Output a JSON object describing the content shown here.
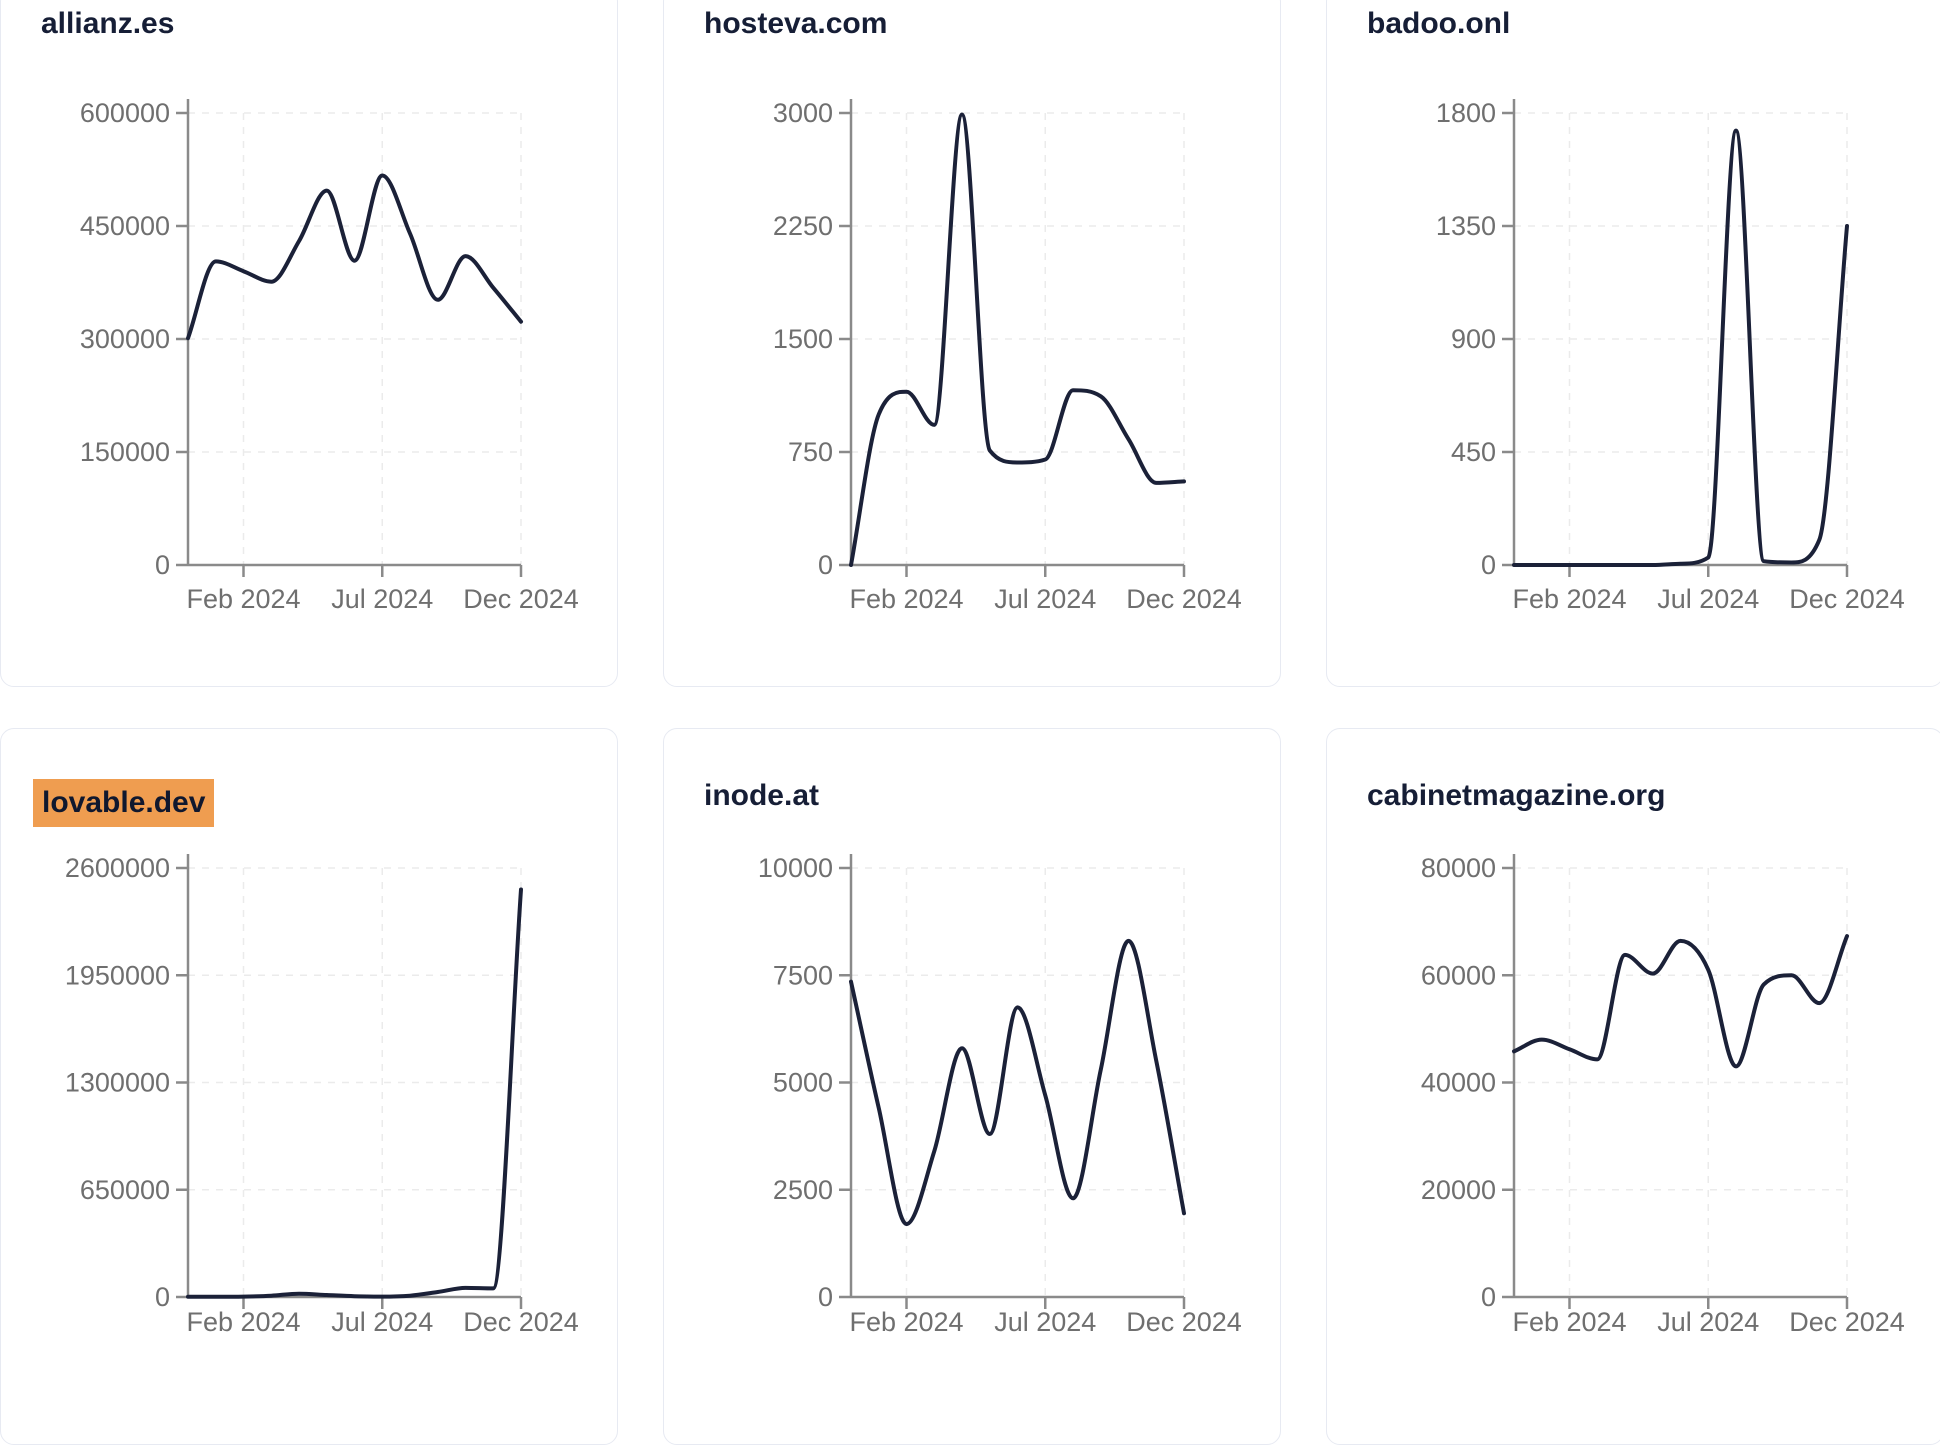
{
  "page": {
    "background": "#ffffff",
    "description": "Grid of organic-traffic trend line charts for six domains, Dec 2023 - Dec 2024"
  },
  "colors": {
    "line": "#1b2138",
    "title_text": "#161e36",
    "tick_text": "#6f6f6f",
    "axis": "#8a8a8a",
    "grid": "#ebebeb",
    "card_border": "#e7eaf2",
    "find_highlight": "#ef9d50"
  },
  "x_axis": {
    "months": [
      "Dec 2023",
      "Jan 2024",
      "Feb 2024",
      "Mar 2024",
      "Apr 2024",
      "May 2024",
      "Jun 2024",
      "Jul 2024",
      "Aug 2024",
      "Sep 2024",
      "Oct 2024",
      "Nov 2024",
      "Dec 2024"
    ],
    "ticks": [
      {
        "label": "Feb 2024",
        "month_index": 2
      },
      {
        "label": "Jul 2024",
        "month_index": 7
      },
      {
        "label": "Dec 2024",
        "month_index": 12
      }
    ]
  },
  "chart_data": [
    {
      "type": "line",
      "title": "allianz.es",
      "highlighted": false,
      "ylim": [
        0,
        600000
      ],
      "y_ticks": [
        0,
        150000,
        300000,
        450000,
        600000
      ],
      "x": [
        "Dec 2023",
        "Jan 2024",
        "Feb 2024",
        "Mar 2024",
        "Apr 2024",
        "May 2024",
        "Jun 2024",
        "Jul 2024",
        "Aug 2024",
        "Sep 2024",
        "Oct 2024",
        "Nov 2024",
        "Dec 2024"
      ],
      "values": [
        301000,
        403000,
        390000,
        376000,
        430000,
        497000,
        404000,
        517000,
        440000,
        352000,
        410000,
        368000,
        323000
      ]
    },
    {
      "type": "line",
      "title": "hosteva.com",
      "highlighted": false,
      "ylim": [
        0,
        3000
      ],
      "y_ticks": [
        0,
        750,
        1500,
        2250,
        3000
      ],
      "x": [
        "Dec 2023",
        "Jan 2024",
        "Feb 2024",
        "Mar 2024",
        "Apr 2024",
        "May 2024",
        "Jun 2024",
        "Jul 2024",
        "Aug 2024",
        "Sep 2024",
        "Oct 2024",
        "Nov 2024",
        "Dec 2024"
      ],
      "values": [
        0,
        1000,
        1150,
        930,
        2990,
        760,
        680,
        700,
        1160,
        1120,
        835,
        545,
        555
      ]
    },
    {
      "type": "line",
      "title": "badoo.onl",
      "highlighted": false,
      "ylim": [
        0,
        1800
      ],
      "y_ticks": [
        0,
        450,
        900,
        1350,
        1800
      ],
      "x": [
        "Dec 2023",
        "Jan 2024",
        "Feb 2024",
        "Mar 2024",
        "Apr 2024",
        "May 2024",
        "Jun 2024",
        "Jul 2024",
        "Aug 2024",
        "Sep 2024",
        "Oct 2024",
        "Nov 2024",
        "Dec 2024"
      ],
      "values": [
        0,
        0,
        0,
        0,
        0,
        0,
        5,
        30,
        1730,
        15,
        10,
        100,
        1350
      ]
    },
    {
      "type": "line",
      "title": "lovable.dev",
      "highlighted": true,
      "ylim": [
        0,
        2600000
      ],
      "y_ticks": [
        0,
        650000,
        1300000,
        1950000,
        2600000
      ],
      "x": [
        "Dec 2023",
        "Jan 2024",
        "Feb 2024",
        "Mar 2024",
        "Apr 2024",
        "May 2024",
        "Jun 2024",
        "Jul 2024",
        "Aug 2024",
        "Sep 2024",
        "Oct 2024",
        "Nov 2024",
        "Dec 2024"
      ],
      "values": [
        1000,
        1200,
        2500,
        8000,
        20000,
        12000,
        5000,
        2500,
        8000,
        30000,
        55000,
        52000,
        2470000
      ]
    },
    {
      "type": "line",
      "title": "inode.at",
      "highlighted": false,
      "ylim": [
        0,
        10000
      ],
      "y_ticks": [
        0,
        2500,
        5000,
        7500,
        10000
      ],
      "x": [
        "Dec 2023",
        "Jan 2024",
        "Feb 2024",
        "Mar 2024",
        "Apr 2024",
        "May 2024",
        "Jun 2024",
        "Jul 2024",
        "Aug 2024",
        "Sep 2024",
        "Oct 2024",
        "Nov 2024",
        "Dec 2024"
      ],
      "values": [
        7350,
        4400,
        1700,
        3400,
        5800,
        3800,
        6750,
        4700,
        2300,
        5300,
        8300,
        5500,
        1950
      ]
    },
    {
      "type": "line",
      "title": "cabinetmagazine.org",
      "highlighted": false,
      "ylim": [
        0,
        80000
      ],
      "y_ticks": [
        0,
        20000,
        40000,
        60000,
        80000
      ],
      "x": [
        "Dec 2023",
        "Jan 2024",
        "Feb 2024",
        "Mar 2024",
        "Apr 2024",
        "May 2024",
        "Jun 2024",
        "Jul 2024",
        "Aug 2024",
        "Sep 2024",
        "Oct 2024",
        "Nov 2024",
        "Dec 2024"
      ],
      "values": [
        45800,
        48000,
        46200,
        44300,
        63800,
        60300,
        66400,
        61000,
        43000,
        58300,
        60000,
        54800,
        67300
      ]
    }
  ]
}
